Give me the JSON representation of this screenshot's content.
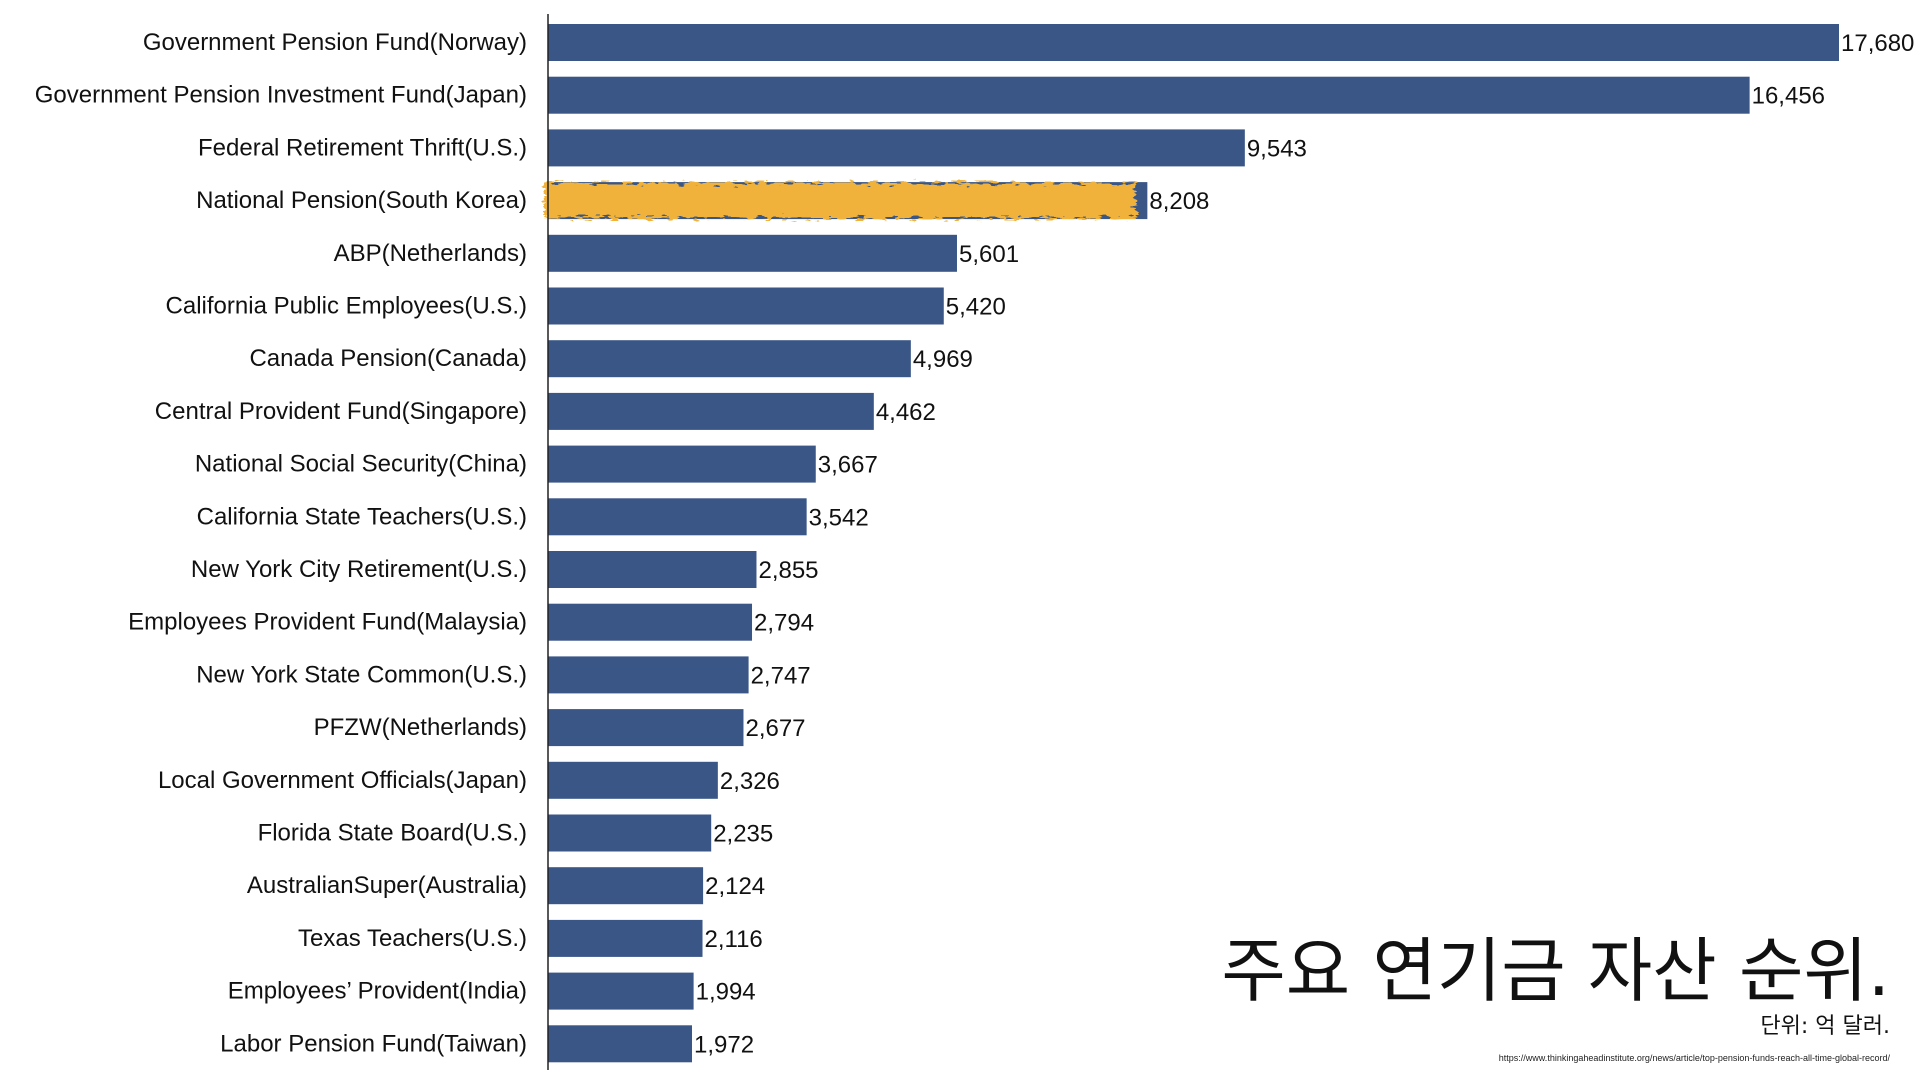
{
  "title": "주요 연기금 자산 순위.",
  "unit_note": "단위: 억 달러.",
  "source": "https://www.thinkingaheadinstitute.org/news/article/top-pension-funds-reach-all-time-global-record/",
  "colors": {
    "bar": "#3a5687",
    "highlight": "#f0b23a",
    "axis": "#222222",
    "text": "#111111"
  },
  "chart_data": {
    "type": "bar",
    "orientation": "horizontal",
    "categories": [
      "Government Pension Fund(Norway)",
      "Government Pension Investment Fund(Japan)",
      "Federal Retirement Thrift(U.S.)",
      "National Pension(South Korea)",
      "ABP(Netherlands)",
      "California Public Employees(U.S.)",
      "Canada Pension(Canada)",
      "Central Provident Fund(Singapore)",
      "National Social Security(China)",
      "California State Teachers(U.S.)",
      "New York City Retirement(U.S.)",
      "Employees Provident Fund(Malaysia)",
      "New York State Common(U.S.)",
      "PFZW(Netherlands)",
      "Local Government Officials(Japan)",
      "Florida State Board(U.S.)",
      "AustralianSuper(Australia)",
      "Texas Teachers(U.S.)",
      "Employees’ Provident(India)",
      "Labor Pension Fund(Taiwan)"
    ],
    "values": [
      17680,
      16456,
      9543,
      8208,
      5601,
      5420,
      4969,
      4462,
      3667,
      3542,
      2855,
      2794,
      2747,
      2677,
      2326,
      2235,
      2124,
      2116,
      1994,
      1972
    ],
    "value_labels": [
      "17,680",
      "16,456",
      "9,543",
      "8,208",
      "5,601",
      "5,420",
      "4,969",
      "4,462",
      "3,667",
      "3,542",
      "2,855",
      "2,794",
      "2,747",
      "2,677",
      "2,326",
      "2,235",
      "2,124",
      "2,116",
      "1,994",
      "1,972"
    ],
    "highlight_index": 3,
    "xlim": [
      0,
      17680
    ],
    "grid": false,
    "legend": "none",
    "xlabel": "",
    "ylabel": ""
  }
}
